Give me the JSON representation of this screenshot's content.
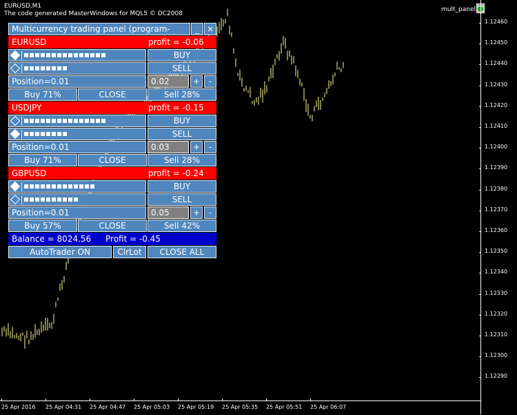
{
  "window": {
    "title_line1": "EURUSD,M1",
    "title_line2": "The code generated MasterWindows for MQL5 © DC2008",
    "ea_name": "mult_panel"
  },
  "price_axis": {
    "labels": [
      "1.12460",
      "1.12450",
      "1.12440",
      "1.12430",
      "1.12420",
      "1.12410",
      "1.12400",
      "1.12390",
      "1.12380",
      "1.12370",
      "1.12360",
      "1.12350",
      "1.12340",
      "1.12330",
      "1.12320",
      "1.12310",
      "1.12300",
      "1.12290"
    ]
  },
  "time_axis": {
    "labels": [
      "25 Apr 2016",
      "25 Apr 04:31",
      "25 Apr 04:47",
      "25 Apr 05:03",
      "25 Apr 05:19",
      "25 Apr 05:35",
      "25 Apr 05:51",
      "25 Apr 06:07"
    ]
  },
  "panel": {
    "title": "Multicurrency trading panel (program-joke:)",
    "minimize_label": "_",
    "close_label": "×",
    "symbols": [
      {
        "name": "EURUSD",
        "profit": "profit = -0.06",
        "buy_dots": 15,
        "sell_dots": 8,
        "buy_diamond_filled": true,
        "sell_diamond_filled": false,
        "buy_label": "BUY",
        "sell_label": "SELL",
        "position": "Position=0.01",
        "lot": "0.02",
        "plus": "+",
        "minus": "-",
        "buy_pct": "Buy 71%",
        "close": "CLOSE",
        "sell_pct": "Sell 28%"
      },
      {
        "name": "USDJPY",
        "profit": "profit = -0.15",
        "buy_dots": 15,
        "sell_dots": 8,
        "buy_diamond_filled": false,
        "sell_diamond_filled": true,
        "buy_label": "BUY",
        "sell_label": "SELL",
        "position": "Position=0.01",
        "lot": "0.03",
        "plus": "+",
        "minus": "-",
        "buy_pct": "Buy 71%",
        "close": "CLOSE",
        "sell_pct": "Sell 28%"
      },
      {
        "name": "GBPUSD",
        "profit": "profit = -0.24",
        "buy_dots": 13,
        "sell_dots": 10,
        "buy_diamond_filled": true,
        "sell_diamond_filled": false,
        "buy_label": "BUY",
        "sell_label": "SELL",
        "position": "Position=0.01",
        "lot": "0.05",
        "plus": "+",
        "minus": "-",
        "buy_pct": "Buy 57%",
        "close": "CLOSE",
        "sell_pct": "Sell 42%"
      }
    ],
    "balance": "Balance = 8024.56",
    "total_profit": "Profit = -0.45",
    "autotrader": "AutoTrader ON",
    "clrlot": "ClrLot",
    "close_all": "CLOSE ALL"
  },
  "colors": {
    "background": "#000000",
    "candles": "#ffff99",
    "panel_blue": "#4f86bd",
    "symbol_red": "#ff0000",
    "balance_navy": "#0000cc"
  }
}
